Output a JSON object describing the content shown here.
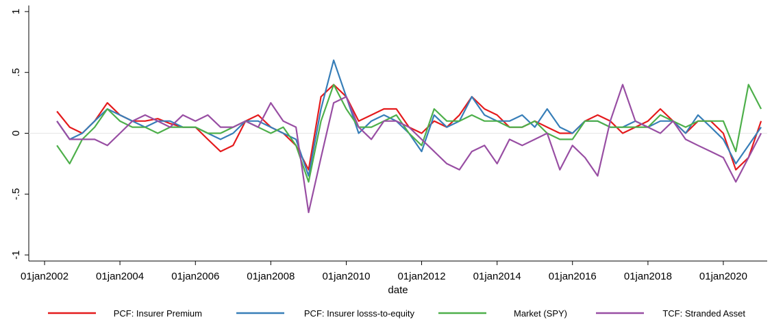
{
  "chart_data": {
    "type": "line",
    "x": [
      "2002-05-01",
      "2002-09-01",
      "2003-01-01",
      "2003-05-01",
      "2003-09-01",
      "2004-01-01",
      "2004-05-01",
      "2004-09-01",
      "2005-01-01",
      "2005-05-01",
      "2005-09-01",
      "2006-01-01",
      "2006-05-01",
      "2006-09-01",
      "2007-01-01",
      "2007-05-01",
      "2007-09-01",
      "2008-01-01",
      "2008-05-01",
      "2008-09-01",
      "2009-01-01",
      "2009-05-01",
      "2009-09-01",
      "2010-01-01",
      "2010-05-01",
      "2010-09-01",
      "2011-01-01",
      "2011-05-01",
      "2011-09-01",
      "2012-01-01",
      "2012-05-01",
      "2012-09-01",
      "2013-01-01",
      "2013-05-01",
      "2013-09-01",
      "2014-01-01",
      "2014-05-01",
      "2014-09-01",
      "2015-01-01",
      "2015-05-01",
      "2015-09-01",
      "2016-01-01",
      "2016-05-01",
      "2016-09-01",
      "2017-01-01",
      "2017-05-01",
      "2017-09-01",
      "2018-01-01",
      "2018-05-01",
      "2018-09-01",
      "2019-01-01",
      "2019-05-01",
      "2019-09-01",
      "2020-01-01",
      "2020-05-01",
      "2020-09-01",
      "2021-01-01"
    ],
    "series": [
      {
        "name": "PCF: Insurer Premium",
        "color": "#e41a1c",
        "values": [
          0.18,
          0.05,
          0.0,
          0.1,
          0.25,
          0.15,
          0.1,
          0.1,
          0.12,
          0.08,
          0.05,
          0.05,
          -0.05,
          -0.15,
          -0.1,
          0.1,
          0.15,
          0.05,
          0.0,
          -0.1,
          -0.3,
          0.3,
          0.4,
          0.3,
          0.1,
          0.15,
          0.2,
          0.2,
          0.05,
          0.0,
          0.1,
          0.05,
          0.15,
          0.3,
          0.2,
          0.15,
          0.05,
          0.05,
          0.1,
          0.05,
          0.0,
          0.0,
          0.1,
          0.15,
          0.1,
          0.0,
          0.05,
          0.1,
          0.2,
          0.1,
          0.0,
          0.1,
          0.1,
          0.0,
          -0.3,
          -0.2,
          0.1
        ]
      },
      {
        "name": "PCF: Insurer losss-to-equity",
        "color": "#377eb8",
        "values": [
          0.1,
          -0.05,
          0.0,
          0.1,
          0.2,
          0.15,
          0.1,
          0.05,
          0.1,
          0.1,
          0.05,
          0.05,
          0.0,
          -0.05,
          0.0,
          0.1,
          0.1,
          0.05,
          0.0,
          -0.05,
          -0.35,
          0.2,
          0.6,
          0.3,
          0.0,
          0.1,
          0.15,
          0.1,
          0.0,
          -0.15,
          0.15,
          0.05,
          0.1,
          0.3,
          0.15,
          0.1,
          0.1,
          0.15,
          0.05,
          0.2,
          0.05,
          0.0,
          0.1,
          0.1,
          0.05,
          0.05,
          0.1,
          0.05,
          0.1,
          0.1,
          0.0,
          0.15,
          0.05,
          -0.05,
          -0.25,
          -0.1,
          0.05
        ]
      },
      {
        "name": "Market (SPY)",
        "color": "#4daf4a",
        "values": [
          -0.1,
          -0.25,
          -0.05,
          0.05,
          0.2,
          0.1,
          0.05,
          0.05,
          0.0,
          0.05,
          0.05,
          0.05,
          0.0,
          0.0,
          0.05,
          0.1,
          0.05,
          0.0,
          0.05,
          -0.1,
          -0.4,
          0.1,
          0.4,
          0.2,
          0.05,
          0.05,
          0.1,
          0.15,
          0.0,
          -0.1,
          0.2,
          0.1,
          0.1,
          0.15,
          0.1,
          0.1,
          0.05,
          0.05,
          0.1,
          0.0,
          -0.05,
          -0.05,
          0.1,
          0.1,
          0.05,
          0.05,
          0.05,
          0.05,
          0.15,
          0.1,
          0.05,
          0.1,
          0.1,
          0.1,
          -0.15,
          0.4,
          0.2
        ]
      },
      {
        "name": "TCF: Stranded Asset",
        "color": "#984ea3",
        "values": [
          0.1,
          -0.05,
          -0.05,
          -0.05,
          -0.1,
          0.0,
          0.1,
          0.15,
          0.1,
          0.05,
          0.15,
          0.1,
          0.15,
          0.05,
          0.05,
          0.1,
          0.05,
          0.25,
          0.1,
          0.05,
          -0.65,
          -0.2,
          0.25,
          0.3,
          0.05,
          -0.05,
          0.1,
          0.1,
          0.05,
          -0.05,
          -0.15,
          -0.25,
          -0.3,
          -0.15,
          -0.1,
          -0.25,
          -0.05,
          -0.1,
          -0.05,
          0.0,
          -0.3,
          -0.1,
          -0.2,
          -0.35,
          0.1,
          0.4,
          0.1,
          0.05,
          0.0,
          0.1,
          -0.05,
          -0.1,
          -0.15,
          -0.2,
          -0.4,
          -0.2,
          0.0
        ]
      }
    ],
    "xlabel": "date",
    "xlim": [
      "2001-08-01",
      "2021-03-01"
    ],
    "xticks": [
      {
        "value": "2002-01-01",
        "label": "01jan2002"
      },
      {
        "value": "2004-01-01",
        "label": "01jan2004"
      },
      {
        "value": "2006-01-01",
        "label": "01jan2006"
      },
      {
        "value": "2008-01-01",
        "label": "01jan2008"
      },
      {
        "value": "2010-01-01",
        "label": "01jan2010"
      },
      {
        "value": "2012-01-01",
        "label": "01jan2012"
      },
      {
        "value": "2014-01-01",
        "label": "01jan2014"
      },
      {
        "value": "2016-01-01",
        "label": "01jan2016"
      },
      {
        "value": "2018-01-01",
        "label": "01jan2018"
      },
      {
        "value": "2020-01-01",
        "label": "01jan2020"
      }
    ],
    "ylim": [
      -1.05,
      1.05
    ],
    "yticks": [
      -1,
      {
        "value": -0.5,
        "label": "-.5"
      },
      0,
      {
        "value": 0.5,
        "label": ".5"
      },
      1
    ],
    "reference_line": 0,
    "legend": "bottom"
  }
}
